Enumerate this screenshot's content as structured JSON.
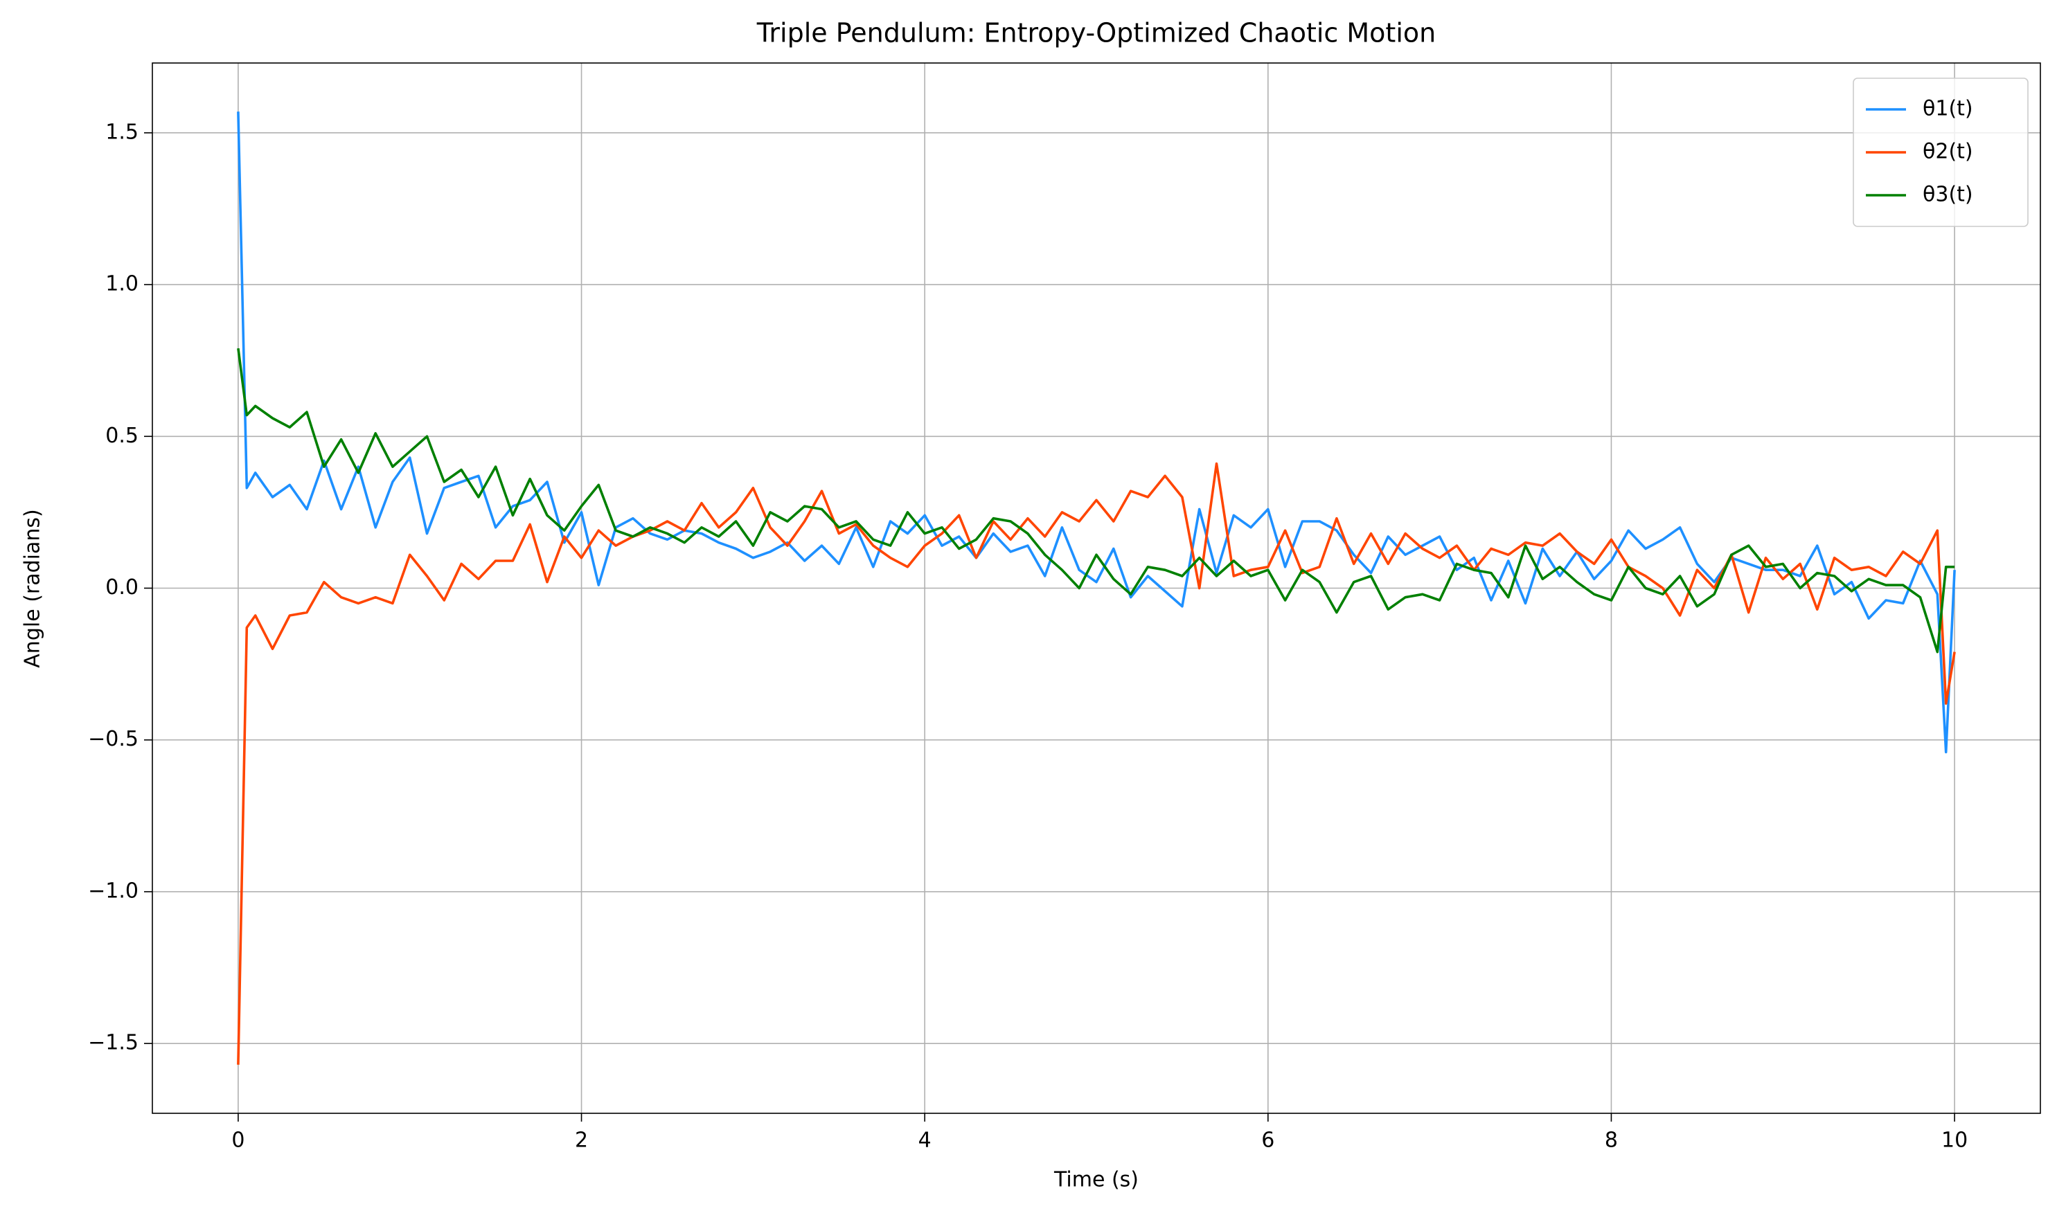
{
  "chart_data": {
    "type": "line",
    "title": "Triple Pendulum: Entropy-Optimized Chaotic Motion",
    "x_label": "Time (s)",
    "y_label": "Angle (radians)",
    "x": [
      0,
      0.05,
      0.1,
      0.2,
      0.3,
      0.4,
      0.5,
      0.6,
      0.7,
      0.8,
      0.9,
      1.0,
      1.1,
      1.2,
      1.3,
      1.4,
      1.5,
      1.6,
      1.7,
      1.8,
      1.9,
      2.0,
      2.1,
      2.2,
      2.3,
      2.4,
      2.5,
      2.6,
      2.7,
      2.8,
      2.9,
      3.0,
      3.1,
      3.2,
      3.3,
      3.4,
      3.5,
      3.6,
      3.7,
      3.8,
      3.9,
      4.0,
      4.1,
      4.2,
      4.3,
      4.4,
      4.5,
      4.6,
      4.7,
      4.8,
      4.9,
      5.0,
      5.1,
      5.2,
      5.3,
      5.4,
      5.5,
      5.6,
      5.7,
      5.8,
      5.9,
      6.0,
      6.1,
      6.2,
      6.3,
      6.4,
      6.5,
      6.6,
      6.7,
      6.8,
      6.9,
      7.0,
      7.1,
      7.2,
      7.3,
      7.4,
      7.5,
      7.6,
      7.7,
      7.8,
      7.9,
      8.0,
      8.1,
      8.2,
      8.3,
      8.4,
      8.5,
      8.6,
      8.7,
      8.8,
      8.9,
      9.0,
      9.1,
      9.2,
      9.3,
      9.4,
      9.5,
      9.6,
      9.7,
      9.8,
      9.9,
      9.95,
      10
    ],
    "series": [
      {
        "name": "θ1(t)",
        "color": "#1e90ff",
        "values": [
          1.57,
          0.33,
          0.38,
          0.3,
          0.34,
          0.26,
          0.42,
          0.26,
          0.4,
          0.2,
          0.35,
          0.43,
          0.18,
          0.33,
          0.35,
          0.37,
          0.2,
          0.27,
          0.29,
          0.35,
          0.15,
          0.25,
          0.01,
          0.2,
          0.23,
          0.18,
          0.16,
          0.19,
          0.18,
          0.15,
          0.13,
          0.1,
          0.12,
          0.15,
          0.09,
          0.14,
          0.08,
          0.2,
          0.07,
          0.22,
          0.18,
          0.24,
          0.14,
          0.17,
          0.1,
          0.18,
          0.12,
          0.14,
          0.04,
          0.2,
          0.06,
          0.02,
          0.13,
          -0.03,
          0.04,
          -0.01,
          -0.06,
          0.26,
          0.05,
          0.24,
          0.2,
          0.26,
          0.07,
          0.22,
          0.22,
          0.19,
          0.11,
          0.05,
          0.17,
          0.11,
          0.14,
          0.17,
          0.06,
          0.1,
          -0.04,
          0.09,
          -0.05,
          0.13,
          0.04,
          0.12,
          0.03,
          0.09,
          0.19,
          0.13,
          0.16,
          0.2,
          0.08,
          0.02,
          0.1,
          0.08,
          0.06,
          0.06,
          0.04,
          0.14,
          -0.02,
          0.02,
          -0.1,
          -0.04,
          -0.05,
          0.09,
          -0.02,
          -0.54,
          0.06
        ]
      },
      {
        "name": "θ2(t)",
        "color": "#ff4500",
        "values": [
          -1.57,
          -0.13,
          -0.09,
          -0.2,
          -0.09,
          -0.08,
          0.02,
          -0.03,
          -0.05,
          -0.03,
          -0.05,
          0.11,
          0.04,
          -0.04,
          0.08,
          0.03,
          0.09,
          0.09,
          0.21,
          0.02,
          0.17,
          0.1,
          0.19,
          0.14,
          0.17,
          0.19,
          0.22,
          0.19,
          0.28,
          0.2,
          0.25,
          0.33,
          0.2,
          0.14,
          0.22,
          0.32,
          0.18,
          0.21,
          0.14,
          0.1,
          0.07,
          0.14,
          0.18,
          0.24,
          0.1,
          0.22,
          0.16,
          0.23,
          0.17,
          0.25,
          0.22,
          0.29,
          0.22,
          0.32,
          0.3,
          0.37,
          0.3,
          0.0,
          0.41,
          0.04,
          0.06,
          0.07,
          0.19,
          0.05,
          0.07,
          0.23,
          0.08,
          0.18,
          0.08,
          0.18,
          0.13,
          0.1,
          0.14,
          0.06,
          0.13,
          0.11,
          0.15,
          0.14,
          0.18,
          0.12,
          0.08,
          0.16,
          0.07,
          0.04,
          0.0,
          -0.09,
          0.06,
          0.0,
          0.11,
          -0.08,
          0.1,
          0.03,
          0.08,
          -0.07,
          0.1,
          0.06,
          0.07,
          0.04,
          0.12,
          0.08,
          0.19,
          -0.38,
          -0.21
        ]
      },
      {
        "name": "θ3(t)",
        "color": "#008000",
        "values": [
          0.79,
          0.57,
          0.6,
          0.56,
          0.53,
          0.58,
          0.4,
          0.49,
          0.38,
          0.51,
          0.4,
          0.45,
          0.5,
          0.35,
          0.39,
          0.3,
          0.4,
          0.24,
          0.36,
          0.24,
          0.19,
          0.27,
          0.34,
          0.19,
          0.17,
          0.2,
          0.18,
          0.15,
          0.2,
          0.17,
          0.22,
          0.14,
          0.25,
          0.22,
          0.27,
          0.26,
          0.2,
          0.22,
          0.16,
          0.14,
          0.25,
          0.18,
          0.2,
          0.13,
          0.16,
          0.23,
          0.22,
          0.18,
          0.11,
          0.06,
          0.0,
          0.11,
          0.03,
          -0.02,
          0.07,
          0.06,
          0.04,
          0.1,
          0.04,
          0.09,
          0.04,
          0.06,
          -0.04,
          0.06,
          0.02,
          -0.08,
          0.02,
          0.04,
          -0.07,
          -0.03,
          -0.02,
          -0.04,
          0.08,
          0.06,
          0.05,
          -0.03,
          0.14,
          0.03,
          0.07,
          0.02,
          -0.02,
          -0.04,
          0.07,
          0.0,
          -0.02,
          0.04,
          -0.06,
          -0.02,
          0.11,
          0.14,
          0.07,
          0.08,
          0.0,
          0.05,
          0.04,
          -0.01,
          0.03,
          0.01,
          0.01,
          -0.03,
          -0.21,
          0.07,
          0.07
        ]
      }
    ],
    "xlim": [
      -0.5,
      10.5
    ],
    "ylim": [
      -1.73,
      1.73
    ],
    "xticks": [
      0,
      2,
      4,
      6,
      8,
      10
    ],
    "yticks": [
      {
        "value": -1.5,
        "label": "−1.5"
      },
      {
        "value": -1.0,
        "label": "−1.0"
      },
      {
        "value": -0.5,
        "label": "−0.5"
      },
      {
        "value": 0.0,
        "label": "0.0"
      },
      {
        "value": 0.5,
        "label": "0.5"
      },
      {
        "value": 1.0,
        "label": "1.0"
      },
      {
        "value": 1.5,
        "label": "1.5"
      }
    ],
    "grid": true,
    "legend": "upper right"
  }
}
